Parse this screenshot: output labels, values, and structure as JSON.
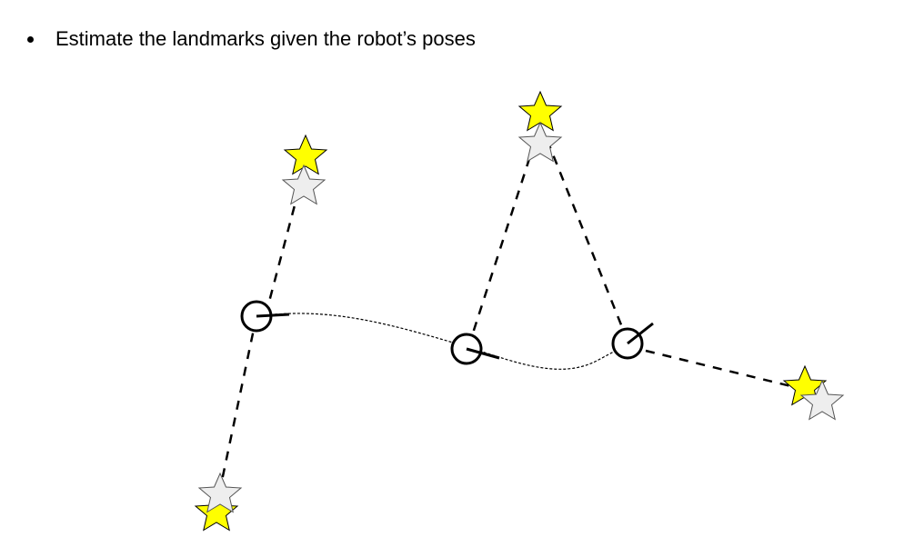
{
  "slide": {
    "bullet_text": "Estimate the landmarks given the robot’s poses"
  },
  "colors": {
    "estimated_landmark": "#FFFF00",
    "true_landmark": "#EEEEEE",
    "outline": "#000000"
  },
  "legend_icons": {
    "robot_pose": "robot-pose-icon",
    "landmark": "star-icon"
  }
}
